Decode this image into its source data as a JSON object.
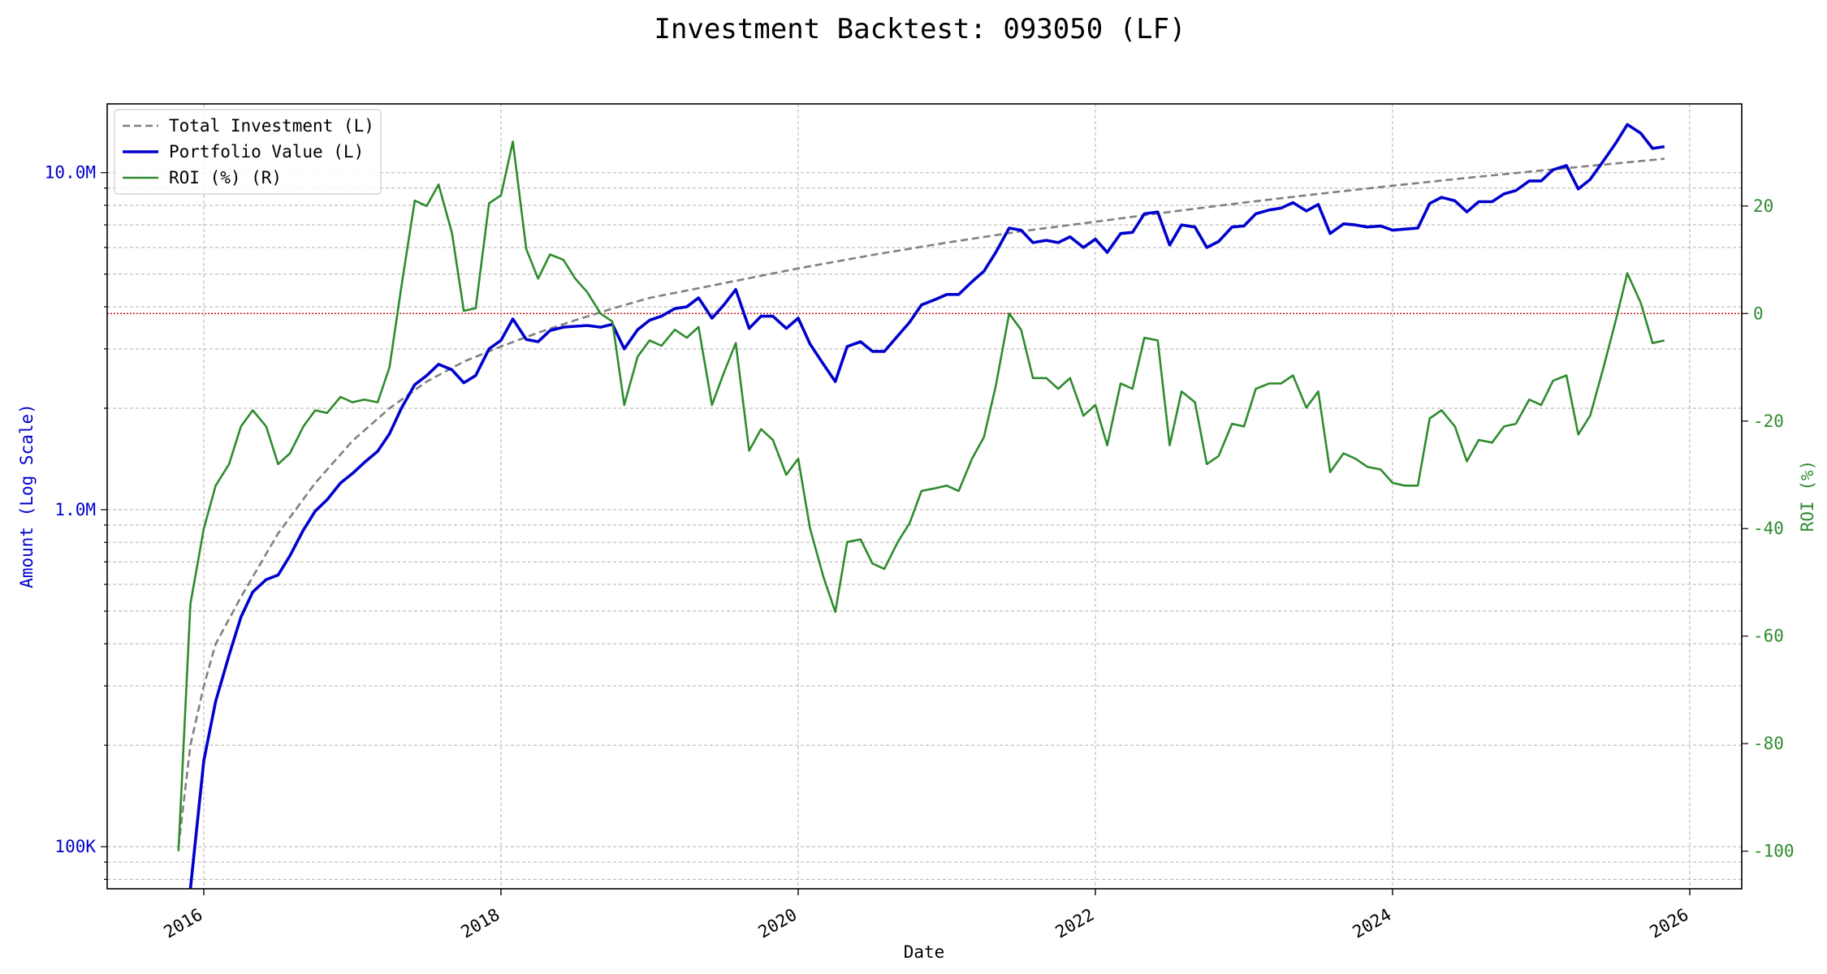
{
  "chart_data": {
    "type": "line",
    "title": "Investment Backtest: 093050 (LF)",
    "xlabel": "Date",
    "ylabel_left": "Amount (Log Scale)",
    "ylabel_right": "ROI (%)",
    "x_ticks": [
      "2016",
      "2018",
      "2020",
      "2022",
      "2024",
      "2026"
    ],
    "y_left_scale": "log",
    "y_left_range": [
      75000,
      16000000
    ],
    "y_left_ticks": [
      {
        "value": 100000,
        "label": "100K"
      },
      {
        "value": 1000000,
        "label": "1.0M"
      },
      {
        "value": 10000000,
        "label": "10.0M"
      }
    ],
    "y_right_range": [
      -107,
      39
    ],
    "y_right_ticks": [
      20,
      0,
      -20,
      -40,
      -60,
      -80,
      -100
    ],
    "x_range": [
      2015.35,
      2026.35
    ],
    "grid": true,
    "legend_position": "top-left",
    "zero_line_color": "#cc0000",
    "series": [
      {
        "name": "Total Investment (L)",
        "axis": "left",
        "color": "#808080",
        "style": "dashed",
        "x": [
          2015.83,
          2015.91,
          2016.0,
          2016.08,
          2016.25,
          2016.5,
          2016.75,
          2017.0,
          2017.25,
          2017.5,
          2017.75,
          2018.0,
          2018.25,
          2018.5,
          2018.75,
          2019.0,
          2019.5,
          2020.0,
          2020.5,
          2021.0,
          2021.5,
          2022.0,
          2022.5,
          2023.0,
          2023.5,
          2024.0,
          2024.5,
          2025.0,
          2025.5,
          2025.83
        ],
        "y": [
          100000,
          200000,
          300000,
          400000,
          550000,
          850000,
          1200000,
          1600000,
          2000000,
          2400000,
          2750000,
          3050000,
          3350000,
          3650000,
          3950000,
          4250000,
          4700000,
          5200000,
          5700000,
          6200000,
          6700000,
          7150000,
          7650000,
          8150000,
          8650000,
          9150000,
          9650000,
          10150000,
          10650000,
          11000000
        ]
      },
      {
        "name": "Portfolio Value (L)",
        "axis": "left",
        "color": "#0000cc",
        "style": "solid",
        "x": [
          2015.91,
          2016.0,
          2016.08,
          2016.17,
          2016.25,
          2016.33,
          2016.42,
          2016.5,
          2016.58,
          2016.67,
          2016.75,
          2016.83,
          2016.92,
          2017.0,
          2017.08,
          2017.17,
          2017.25,
          2017.33,
          2017.42,
          2017.5,
          2017.58,
          2017.67,
          2017.75,
          2017.83,
          2017.92,
          2018.0,
          2018.08,
          2018.17,
          2018.25,
          2018.33,
          2018.42,
          2018.5,
          2018.58,
          2018.67,
          2018.75,
          2018.83,
          2018.92,
          2019.0,
          2019.08,
          2019.17,
          2019.25,
          2019.33,
          2019.42,
          2019.5,
          2019.58,
          2019.67,
          2019.75,
          2019.83,
          2019.92,
          2020.0,
          2020.08,
          2020.17,
          2020.25,
          2020.33,
          2020.42,
          2020.5,
          2020.58,
          2020.67,
          2020.75,
          2020.83,
          2020.92,
          2021.0,
          2021.08,
          2021.17,
          2021.25,
          2021.33,
          2021.42,
          2021.5,
          2021.58,
          2021.67,
          2021.75,
          2021.83,
          2021.92,
          2022.0,
          2022.08,
          2022.17,
          2022.25,
          2022.33,
          2022.42,
          2022.5,
          2022.58,
          2022.67,
          2022.75,
          2022.83,
          2022.92,
          2023.0,
          2023.08,
          2023.17,
          2023.25,
          2023.33,
          2023.42,
          2023.5,
          2023.58,
          2023.67,
          2023.75,
          2023.83,
          2023.92,
          2024.0,
          2024.08,
          2024.17,
          2024.25,
          2024.33,
          2024.42,
          2024.5,
          2024.58,
          2024.67,
          2024.75,
          2024.83,
          2024.92,
          2025.0,
          2025.08,
          2025.17,
          2025.25,
          2025.33,
          2025.42,
          2025.5,
          2025.58,
          2025.67,
          2025.75,
          2025.83
        ],
        "y": [
          75000,
          180000,
          270000,
          370000,
          480000,
          570000,
          620000,
          640000,
          730000,
          870000,
          990000,
          1070000,
          1200000,
          1280000,
          1380000,
          1490000,
          1680000,
          2000000,
          2350000,
          2500000,
          2700000,
          2600000,
          2380000,
          2500000,
          3000000,
          3180000,
          3680000,
          3200000,
          3150000,
          3400000,
          3480000,
          3500000,
          3520000,
          3480000,
          3550000,
          3000000,
          3420000,
          3650000,
          3750000,
          3950000,
          4000000,
          4250000,
          3700000,
          4050000,
          4500000,
          3450000,
          3750000,
          3750000,
          3450000,
          3700000,
          3100000,
          2700000,
          2400000,
          3050000,
          3150000,
          2950000,
          2950000,
          3280000,
          3600000,
          4050000,
          4200000,
          4350000,
          4350000,
          4750000,
          5100000,
          5800000,
          6850000,
          6750000,
          6200000,
          6300000,
          6200000,
          6450000,
          6000000,
          6350000,
          5800000,
          6600000,
          6650000,
          7550000,
          7650000,
          6100000,
          7000000,
          6900000,
          6000000,
          6250000,
          6900000,
          6950000,
          7550000,
          7750000,
          7850000,
          8150000,
          7700000,
          8050000,
          6600000,
          7050000,
          7000000,
          6900000,
          6950000,
          6750000,
          6800000,
          6850000,
          8100000,
          8450000,
          8250000,
          7650000,
          8200000,
          8200000,
          8650000,
          8850000,
          9450000,
          9450000,
          10200000,
          10500000,
          8950000,
          9550000,
          10850000,
          12200000,
          13900000,
          13100000,
          11800000,
          11950000
        ]
      },
      {
        "name": "ROI (%) (R)",
        "axis": "right",
        "color": "#2e8b2e",
        "style": "solid",
        "x": [
          2015.83,
          2015.91,
          2016.0,
          2016.08,
          2016.17,
          2016.25,
          2016.33,
          2016.42,
          2016.5,
          2016.58,
          2016.67,
          2016.75,
          2016.83,
          2016.92,
          2017.0,
          2017.08,
          2017.17,
          2017.25,
          2017.33,
          2017.42,
          2017.5,
          2017.58,
          2017.67,
          2017.75,
          2017.83,
          2017.92,
          2018.0,
          2018.08,
          2018.17,
          2018.25,
          2018.33,
          2018.42,
          2018.5,
          2018.58,
          2018.67,
          2018.75,
          2018.83,
          2018.92,
          2019.0,
          2019.08,
          2019.17,
          2019.25,
          2019.33,
          2019.42,
          2019.5,
          2019.58,
          2019.67,
          2019.75,
          2019.83,
          2019.92,
          2020.0,
          2020.08,
          2020.17,
          2020.25,
          2020.33,
          2020.42,
          2020.5,
          2020.58,
          2020.67,
          2020.75,
          2020.83,
          2020.92,
          2021.0,
          2021.08,
          2021.17,
          2021.25,
          2021.33,
          2021.42,
          2021.5,
          2021.58,
          2021.67,
          2021.75,
          2021.83,
          2021.92,
          2022.0,
          2022.08,
          2022.17,
          2022.25,
          2022.33,
          2022.42,
          2022.5,
          2022.58,
          2022.67,
          2022.75,
          2022.83,
          2022.92,
          2023.0,
          2023.08,
          2023.17,
          2023.25,
          2023.33,
          2023.42,
          2023.5,
          2023.58,
          2023.67,
          2023.75,
          2023.83,
          2023.92,
          2024.0,
          2024.08,
          2024.17,
          2024.25,
          2024.33,
          2024.42,
          2024.5,
          2024.58,
          2024.67,
          2024.75,
          2024.83,
          2024.92,
          2025.0,
          2025.08,
          2025.17,
          2025.25,
          2025.33,
          2025.42,
          2025.5,
          2025.58,
          2025.67,
          2025.75,
          2025.83
        ],
        "y": [
          -100,
          -54,
          -40,
          -32,
          -28,
          -21,
          -18,
          -21,
          -28,
          -26,
          -21,
          -18,
          -18.5,
          -15.5,
          -16.5,
          -16,
          -16.5,
          -10,
          5,
          21,
          20,
          24,
          15,
          0.5,
          1,
          20.5,
          22,
          32,
          12,
          6.5,
          11,
          10,
          6.5,
          4,
          0,
          -1.5,
          -17,
          -8,
          -5,
          -6,
          -3,
          -4.5,
          -2.5,
          -17,
          -11,
          -5.5,
          -25.5,
          -21.5,
          -23.5,
          -30,
          -27,
          -40,
          -49,
          -55.5,
          -42.5,
          -42,
          -46.5,
          -47.5,
          -42.5,
          -39,
          -33,
          -32.5,
          -32,
          -33,
          -27,
          -23,
          -13.5,
          0,
          -3,
          -12,
          -12,
          -14,
          -12,
          -19,
          -17,
          -24.5,
          -13,
          -14,
          -4.5,
          -5,
          -24.5,
          -14.5,
          -16.5,
          -28,
          -26.5,
          -20.5,
          -21,
          -14,
          -13,
          -13,
          -11.5,
          -17.5,
          -14.5,
          -29.5,
          -26,
          -27,
          -28.5,
          -29,
          -31.5,
          -32,
          -32,
          -19.5,
          -18,
          -21,
          -27.5,
          -23.5,
          -24,
          -21,
          -20.5,
          -16,
          -17,
          -12.5,
          -11.5,
          -22.5,
          -19,
          -10,
          -1.5,
          7.5,
          2,
          -5.5,
          -5
        ]
      }
    ]
  }
}
